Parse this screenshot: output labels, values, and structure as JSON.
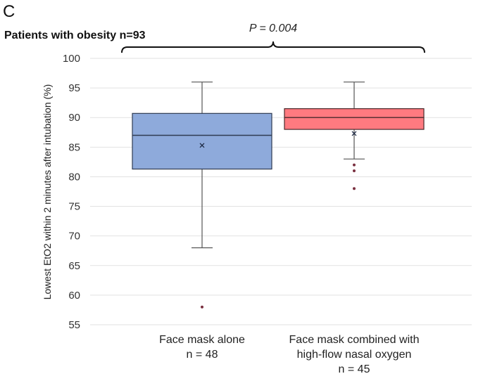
{
  "chart_data": {
    "type": "box",
    "panel_label": "C",
    "title": "Patients with obesity n=93",
    "annotation": "P = 0.004",
    "ylabel": "Lowest EtO2 within 2 minutes after intubation (%)",
    "ylim": [
      55,
      100
    ],
    "yticks": [
      55,
      60,
      65,
      70,
      75,
      80,
      85,
      90,
      95,
      100
    ],
    "grid": true,
    "groups": [
      {
        "name_lines": [
          "Face mask alone",
          "n = 48"
        ],
        "color": "#8eaadb",
        "border": "#2f3b52",
        "whisker_low": 68,
        "q1": 81.3,
        "median": 87,
        "q3": 90.7,
        "whisker_high": 96,
        "mean": 85.3,
        "outliers": [
          58
        ]
      },
      {
        "name_lines": [
          "Face mask combined with",
          "high-flow nasal oxygen",
          "n = 45"
        ],
        "color": "#ff7a80",
        "border": "#4a2a2c",
        "whisker_low": 83,
        "q1": 88,
        "median": 90,
        "q3": 91.5,
        "whisker_high": 96,
        "mean": 87.3,
        "outliers": [
          82,
          81,
          78
        ]
      }
    ]
  }
}
